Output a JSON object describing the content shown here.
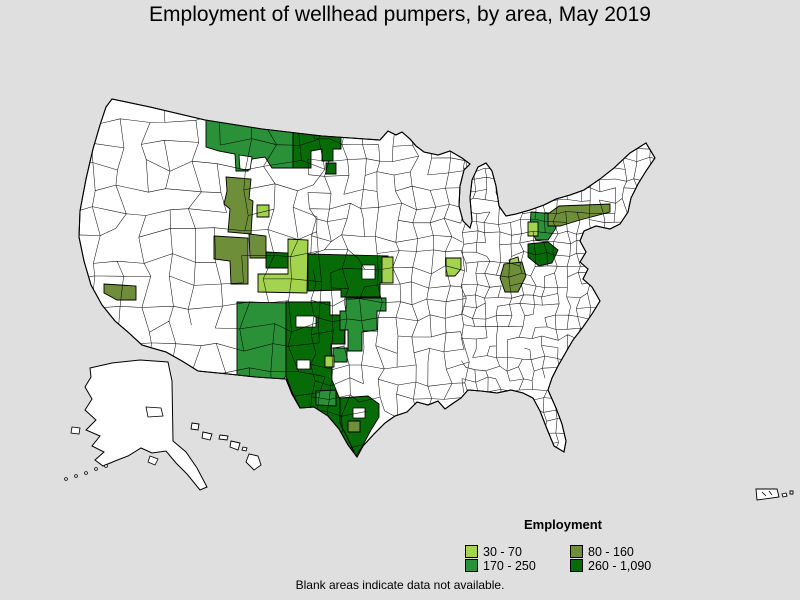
{
  "title": "Employment of wellhead pumpers, by area, May 2019",
  "note": "Blank areas indicate data not available.",
  "map": {
    "background": "#dfdfdf",
    "land": "#ffffff",
    "boundary": "#000000"
  },
  "chart_data": {
    "type": "choropleth",
    "geography": "United States (incl. Alaska, Hawaii, Puerto Rico), BLS employment areas",
    "title": "Employment of wellhead pumpers, by area, May 2019",
    "legend_title": "Employment",
    "legend_position": "bottom-right",
    "note": "Blank areas indicate data not available.",
    "bins": [
      {
        "label": "30 - 70",
        "color": "#a4d34f"
      },
      {
        "label": "80 - 160",
        "color": "#6f8e3a"
      },
      {
        "label": "170 - 250",
        "color": "#2b9138"
      },
      {
        "label": "260 - 1,090",
        "color": "#076b07"
      }
    ],
    "regions": [
      {
        "id": "montana",
        "approx_location": "Western/central Montana",
        "bin": "170 - 250"
      },
      {
        "id": "ndwest",
        "approx_location": "Eastern Montana / western North Dakota",
        "bin": "260 - 1,090"
      },
      {
        "id": "ndsmall",
        "approx_location": "Central North Dakota",
        "bin": "260 - 1,090"
      },
      {
        "id": "wyoming",
        "approx_location": "Western Wyoming",
        "bin": "80 - 160"
      },
      {
        "id": "wylight",
        "approx_location": "Northeastern Wyoming",
        "bin": "30 - 70"
      },
      {
        "id": "utah",
        "approx_location": "Eastern Utah",
        "bin": "80 - 160"
      },
      {
        "id": "cowestolive",
        "approx_location": "Western Colorado",
        "bin": "80 - 160"
      },
      {
        "id": "casmall",
        "approx_location": "California Central Coast",
        "bin": "80 - 160"
      },
      {
        "id": "coeast",
        "approx_location": "Eastern Colorado",
        "bin": "30 - 70"
      },
      {
        "id": "codark",
        "approx_location": "North-central Colorado",
        "bin": "260 - 1,090"
      },
      {
        "id": "ksok",
        "approx_location": "Western Kansas / Oklahoma Panhandle",
        "bin": "260 - 1,090"
      },
      {
        "id": "kslight",
        "approx_location": "Central Kansas",
        "bin": "30 - 70"
      },
      {
        "id": "molight",
        "approx_location": "Missouri / Illinois area",
        "bin": "30 - 70"
      },
      {
        "id": "nmeast",
        "approx_location": "New Mexico",
        "bin": "170 - 250"
      },
      {
        "id": "wtxdark",
        "approx_location": "West Texas (Permian Basin) to south Texas",
        "bin": "260 - 1,090"
      },
      {
        "id": "oktxmed",
        "approx_location": "Oklahoma / north Texas",
        "bin": "170 - 250"
      },
      {
        "id": "oktxmed2",
        "approx_location": "Central Texas",
        "bin": "170 - 250"
      },
      {
        "id": "txlight",
        "approx_location": "Central Texas (small area)",
        "bin": "30 - 70"
      },
      {
        "id": "txgulf",
        "approx_location": "Texas Gulf Coast",
        "bin": "260 - 1,090"
      },
      {
        "id": "txcoastolive",
        "approx_location": "Corpus Christi area",
        "bin": "80 - 160"
      },
      {
        "id": "txsouthmed",
        "approx_location": "Southern Texas",
        "bin": "170 - 250"
      },
      {
        "id": "pamed",
        "approx_location": "Northwestern Pennsylvania",
        "bin": "170 - 250"
      },
      {
        "id": "paolive",
        "approx_location": "Northern Pennsylvania",
        "bin": "80 - 160"
      },
      {
        "id": "palight",
        "approx_location": "Western Pennsylvania (small area)",
        "bin": "30 - 70"
      },
      {
        "id": "wvdark",
        "approx_location": "West Virginia",
        "bin": "260 - 1,090"
      },
      {
        "id": "wvlight",
        "approx_location": "Ohio / West Virginia border (small area)",
        "bin": "30 - 70"
      },
      {
        "id": "kyolive",
        "approx_location": "Eastern Kentucky",
        "bin": "80 - 160"
      }
    ]
  },
  "legend": {
    "title": "Employment"
  }
}
